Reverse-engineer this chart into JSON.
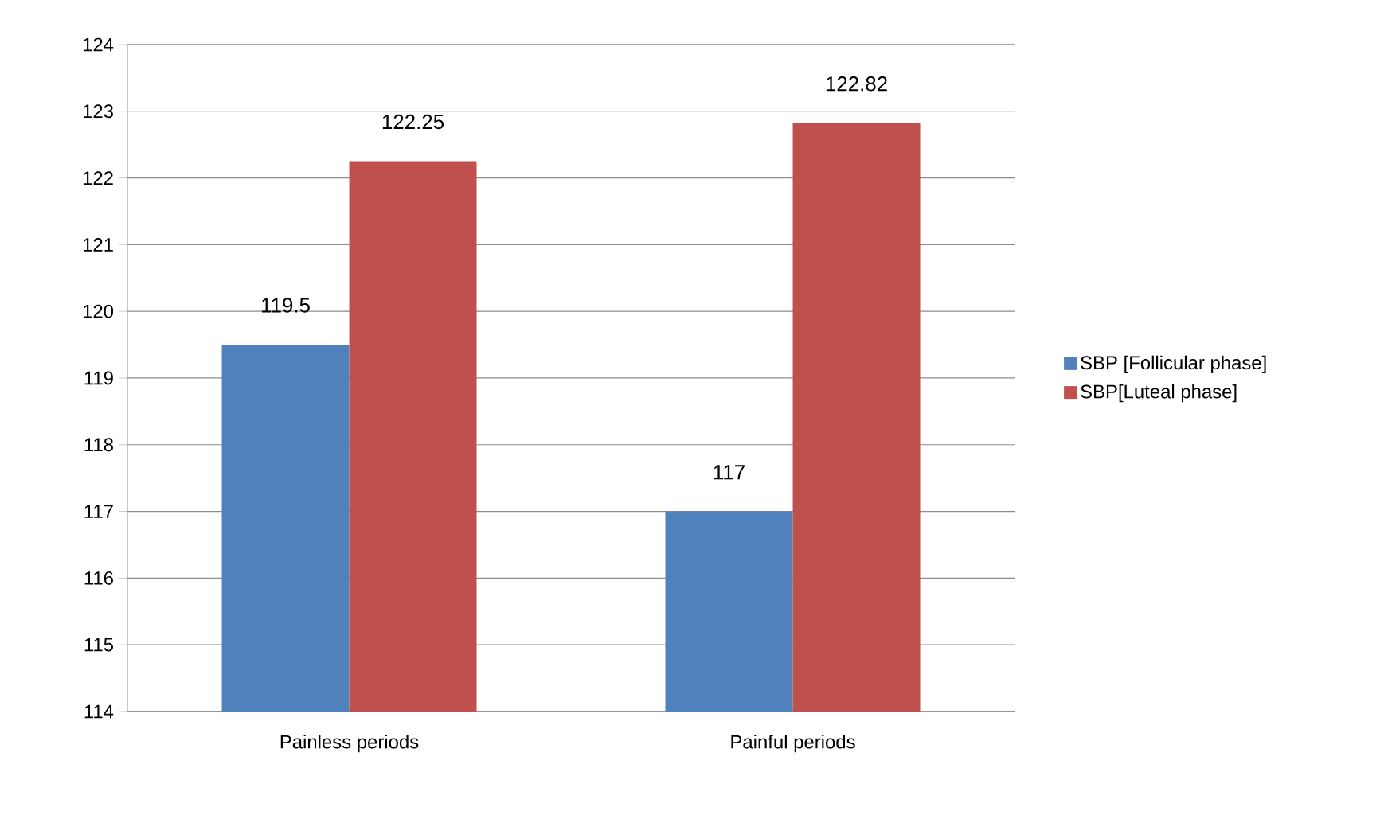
{
  "chart_data": {
    "type": "bar",
    "categories": [
      "Painless periods",
      "Painful periods"
    ],
    "series": [
      {
        "name": "SBP [Follicular phase]",
        "color": "#4f81bd",
        "values": [
          119.5,
          117
        ]
      },
      {
        "name": "SBP[Luteal phase]",
        "color": "#c0504d",
        "values": [
          122.25,
          122.82
        ]
      }
    ],
    "ylim": [
      114,
      124
    ],
    "yticks": [
      114,
      115,
      116,
      117,
      118,
      119,
      120,
      121,
      122,
      123,
      124
    ],
    "grid": "y",
    "legend": "right",
    "data_labels": true
  }
}
